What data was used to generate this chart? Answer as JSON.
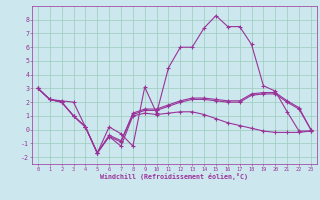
{
  "xlabel": "Windchill (Refroidissement éolien,°C)",
  "background_color": "#cce8ee",
  "grid_color": "#99ccbb",
  "line_color": "#993399",
  "x_data": [
    0,
    1,
    2,
    3,
    4,
    5,
    6,
    7,
    8,
    9,
    10,
    11,
    12,
    13,
    14,
    15,
    16,
    17,
    18,
    19,
    20,
    21,
    22,
    23
  ],
  "line1_y": [
    3.0,
    2.2,
    2.1,
    2.0,
    0.2,
    -1.7,
    0.2,
    -0.3,
    -1.2,
    3.1,
    1.2,
    4.5,
    6.0,
    6.0,
    7.4,
    8.3,
    7.5,
    7.5,
    6.2,
    3.2,
    2.8,
    1.3,
    -0.1,
    -0.1
  ],
  "line2_y": [
    3.0,
    2.2,
    2.0,
    1.0,
    0.2,
    -1.7,
    -0.5,
    -1.2,
    1.0,
    1.2,
    1.1,
    1.2,
    1.3,
    1.3,
    1.1,
    0.8,
    0.5,
    0.3,
    0.1,
    -0.1,
    -0.2,
    -0.2,
    -0.2,
    -0.1
  ],
  "line3_y": [
    3.0,
    2.2,
    2.0,
    1.0,
    0.2,
    -1.7,
    -0.4,
    -0.8,
    1.1,
    1.4,
    1.4,
    1.7,
    2.0,
    2.2,
    2.2,
    2.1,
    2.0,
    2.0,
    2.5,
    2.6,
    2.6,
    2.0,
    1.5,
    0.0
  ],
  "line4_y": [
    3.0,
    2.2,
    2.0,
    1.0,
    0.2,
    -1.7,
    -0.5,
    -0.9,
    1.2,
    1.5,
    1.5,
    1.8,
    2.1,
    2.3,
    2.3,
    2.2,
    2.1,
    2.1,
    2.6,
    2.7,
    2.7,
    2.1,
    1.6,
    0.0
  ],
  "ylim": [
    -2.5,
    9.0
  ],
  "xlim": [
    -0.5,
    23.5
  ],
  "yticks": [
    -2,
    -1,
    0,
    1,
    2,
    3,
    4,
    5,
    6,
    7,
    8
  ],
  "xticks": [
    0,
    1,
    2,
    3,
    4,
    5,
    6,
    7,
    8,
    9,
    10,
    11,
    12,
    13,
    14,
    15,
    16,
    17,
    18,
    19,
    20,
    21,
    22,
    23
  ]
}
